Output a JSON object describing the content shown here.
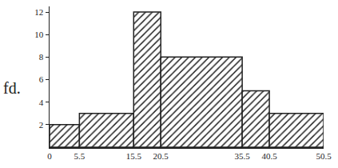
{
  "chart_data": {
    "type": "histogram",
    "y_label": "fd.",
    "bins": [
      0,
      5.5,
      15.5,
      20.5,
      35.5,
      40.5,
      50.5
    ],
    "values": [
      2,
      3,
      12,
      8,
      5,
      3
    ],
    "color": "#222222",
    "xlim": [
      0,
      50.5
    ],
    "xticks": [
      0,
      5.5,
      15.5,
      20.5,
      35.5,
      40.5,
      50.5
    ],
    "ylim": [
      0,
      12.5
    ],
    "yticks": [
      2,
      4,
      6,
      8,
      10,
      12
    ],
    "grid": false
  }
}
